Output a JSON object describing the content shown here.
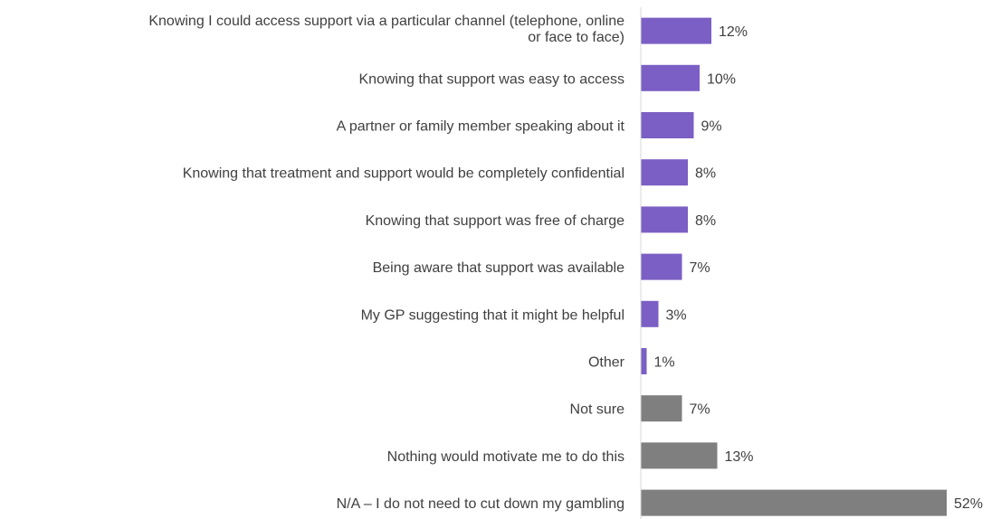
{
  "chart_data": {
    "type": "bar",
    "orientation": "horizontal",
    "title": "",
    "xlabel": "",
    "ylabel": "",
    "xlim": [
      0,
      52
    ],
    "grid": false,
    "legend": "none",
    "value_suffix": "%",
    "colors": {
      "highlight": "#7b5fc4",
      "neutral": "#7f7f7f",
      "axis": "#d9d9d9",
      "text": "#404040"
    },
    "categories": [
      [
        "Knowing I could access support via a particular channel (telephone, online",
        "or face to face)"
      ],
      [
        "Knowing that support was easy to access"
      ],
      [
        "A partner or family member speaking about it"
      ],
      [
        "Knowing that treatment and support would be completely confidential"
      ],
      [
        "Knowing that support was free of charge"
      ],
      [
        "Being aware that support was available"
      ],
      [
        "My GP suggesting that it might be helpful"
      ],
      [
        "Other"
      ],
      [
        "Not sure"
      ],
      [
        "Nothing would motivate me to do this"
      ],
      [
        "N/A – I do not need to cut down my gambling"
      ]
    ],
    "values": [
      12,
      10,
      9,
      8,
      8,
      7,
      3,
      1,
      7,
      13,
      52
    ],
    "groups": [
      "highlight",
      "highlight",
      "highlight",
      "highlight",
      "highlight",
      "highlight",
      "highlight",
      "highlight",
      "neutral",
      "neutral",
      "neutral"
    ]
  }
}
